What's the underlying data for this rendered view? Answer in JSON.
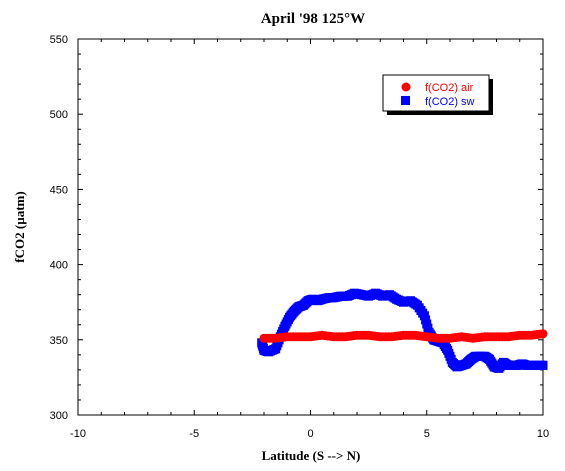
{
  "chart_data": {
    "type": "scatter",
    "title": "April '98 125°W",
    "xlabel": "Latitude (S --> N)",
    "ylabel": "fCO2 (µatm)",
    "xlim": [
      -10,
      10
    ],
    "ylim": [
      300,
      550
    ],
    "x_ticks": [
      -10,
      -5,
      0,
      5,
      10
    ],
    "y_ticks": [
      300,
      350,
      400,
      450,
      500,
      550
    ],
    "grid": false,
    "legend_position": "top-right",
    "series": [
      {
        "name": "f(CO2) air",
        "marker": "circle",
        "color": "#ff0000",
        "x": [
          -2.0,
          -1.5,
          -1.0,
          -0.5,
          0.0,
          0.5,
          1.0,
          1.5,
          2.0,
          2.5,
          3.0,
          3.5,
          4.0,
          4.5,
          5.0,
          5.5,
          6.0,
          6.5,
          7.0,
          7.5,
          8.0,
          8.5,
          9.0,
          9.5,
          10.0
        ],
        "y": [
          351,
          351,
          352,
          352,
          352,
          353,
          352,
          352,
          353,
          353,
          352,
          352,
          353,
          353,
          352,
          351,
          351,
          352,
          351,
          352,
          352,
          352,
          353,
          353,
          354
        ]
      },
      {
        "name": "f(CO2) sw",
        "marker": "square",
        "color": "#0000ff",
        "x": [
          -2.1,
          -2.0,
          -1.8,
          -1.5,
          -1.3,
          -1.1,
          -0.9,
          -0.7,
          -0.5,
          -0.3,
          -0.1,
          0.1,
          0.3,
          0.5,
          0.8,
          1.0,
          1.3,
          1.6,
          1.9,
          2.2,
          2.5,
          2.8,
          3.1,
          3.4,
          3.7,
          4.0,
          4.3,
          4.6,
          4.9,
          5.1,
          5.3,
          5.5,
          5.7,
          5.9,
          6.1,
          6.3,
          6.5,
          6.7,
          6.9,
          7.1,
          7.3,
          7.5,
          7.7,
          7.9,
          8.1,
          8.3,
          8.5,
          8.7,
          8.9,
          9.1,
          9.3,
          9.5,
          9.7,
          9.9,
          10.0
        ],
        "y": [
          348,
          343,
          342,
          344,
          352,
          359,
          365,
          369,
          372,
          373,
          376,
          377,
          376,
          377,
          378,
          378,
          379,
          379,
          381,
          380,
          379,
          381,
          379,
          380,
          377,
          375,
          376,
          373,
          366,
          355,
          350,
          349,
          348,
          343,
          335,
          332,
          333,
          334,
          337,
          339,
          339,
          339,
          337,
          332,
          331,
          335,
          333,
          333,
          333,
          334,
          333,
          333,
          333,
          333,
          333
        ]
      }
    ]
  }
}
